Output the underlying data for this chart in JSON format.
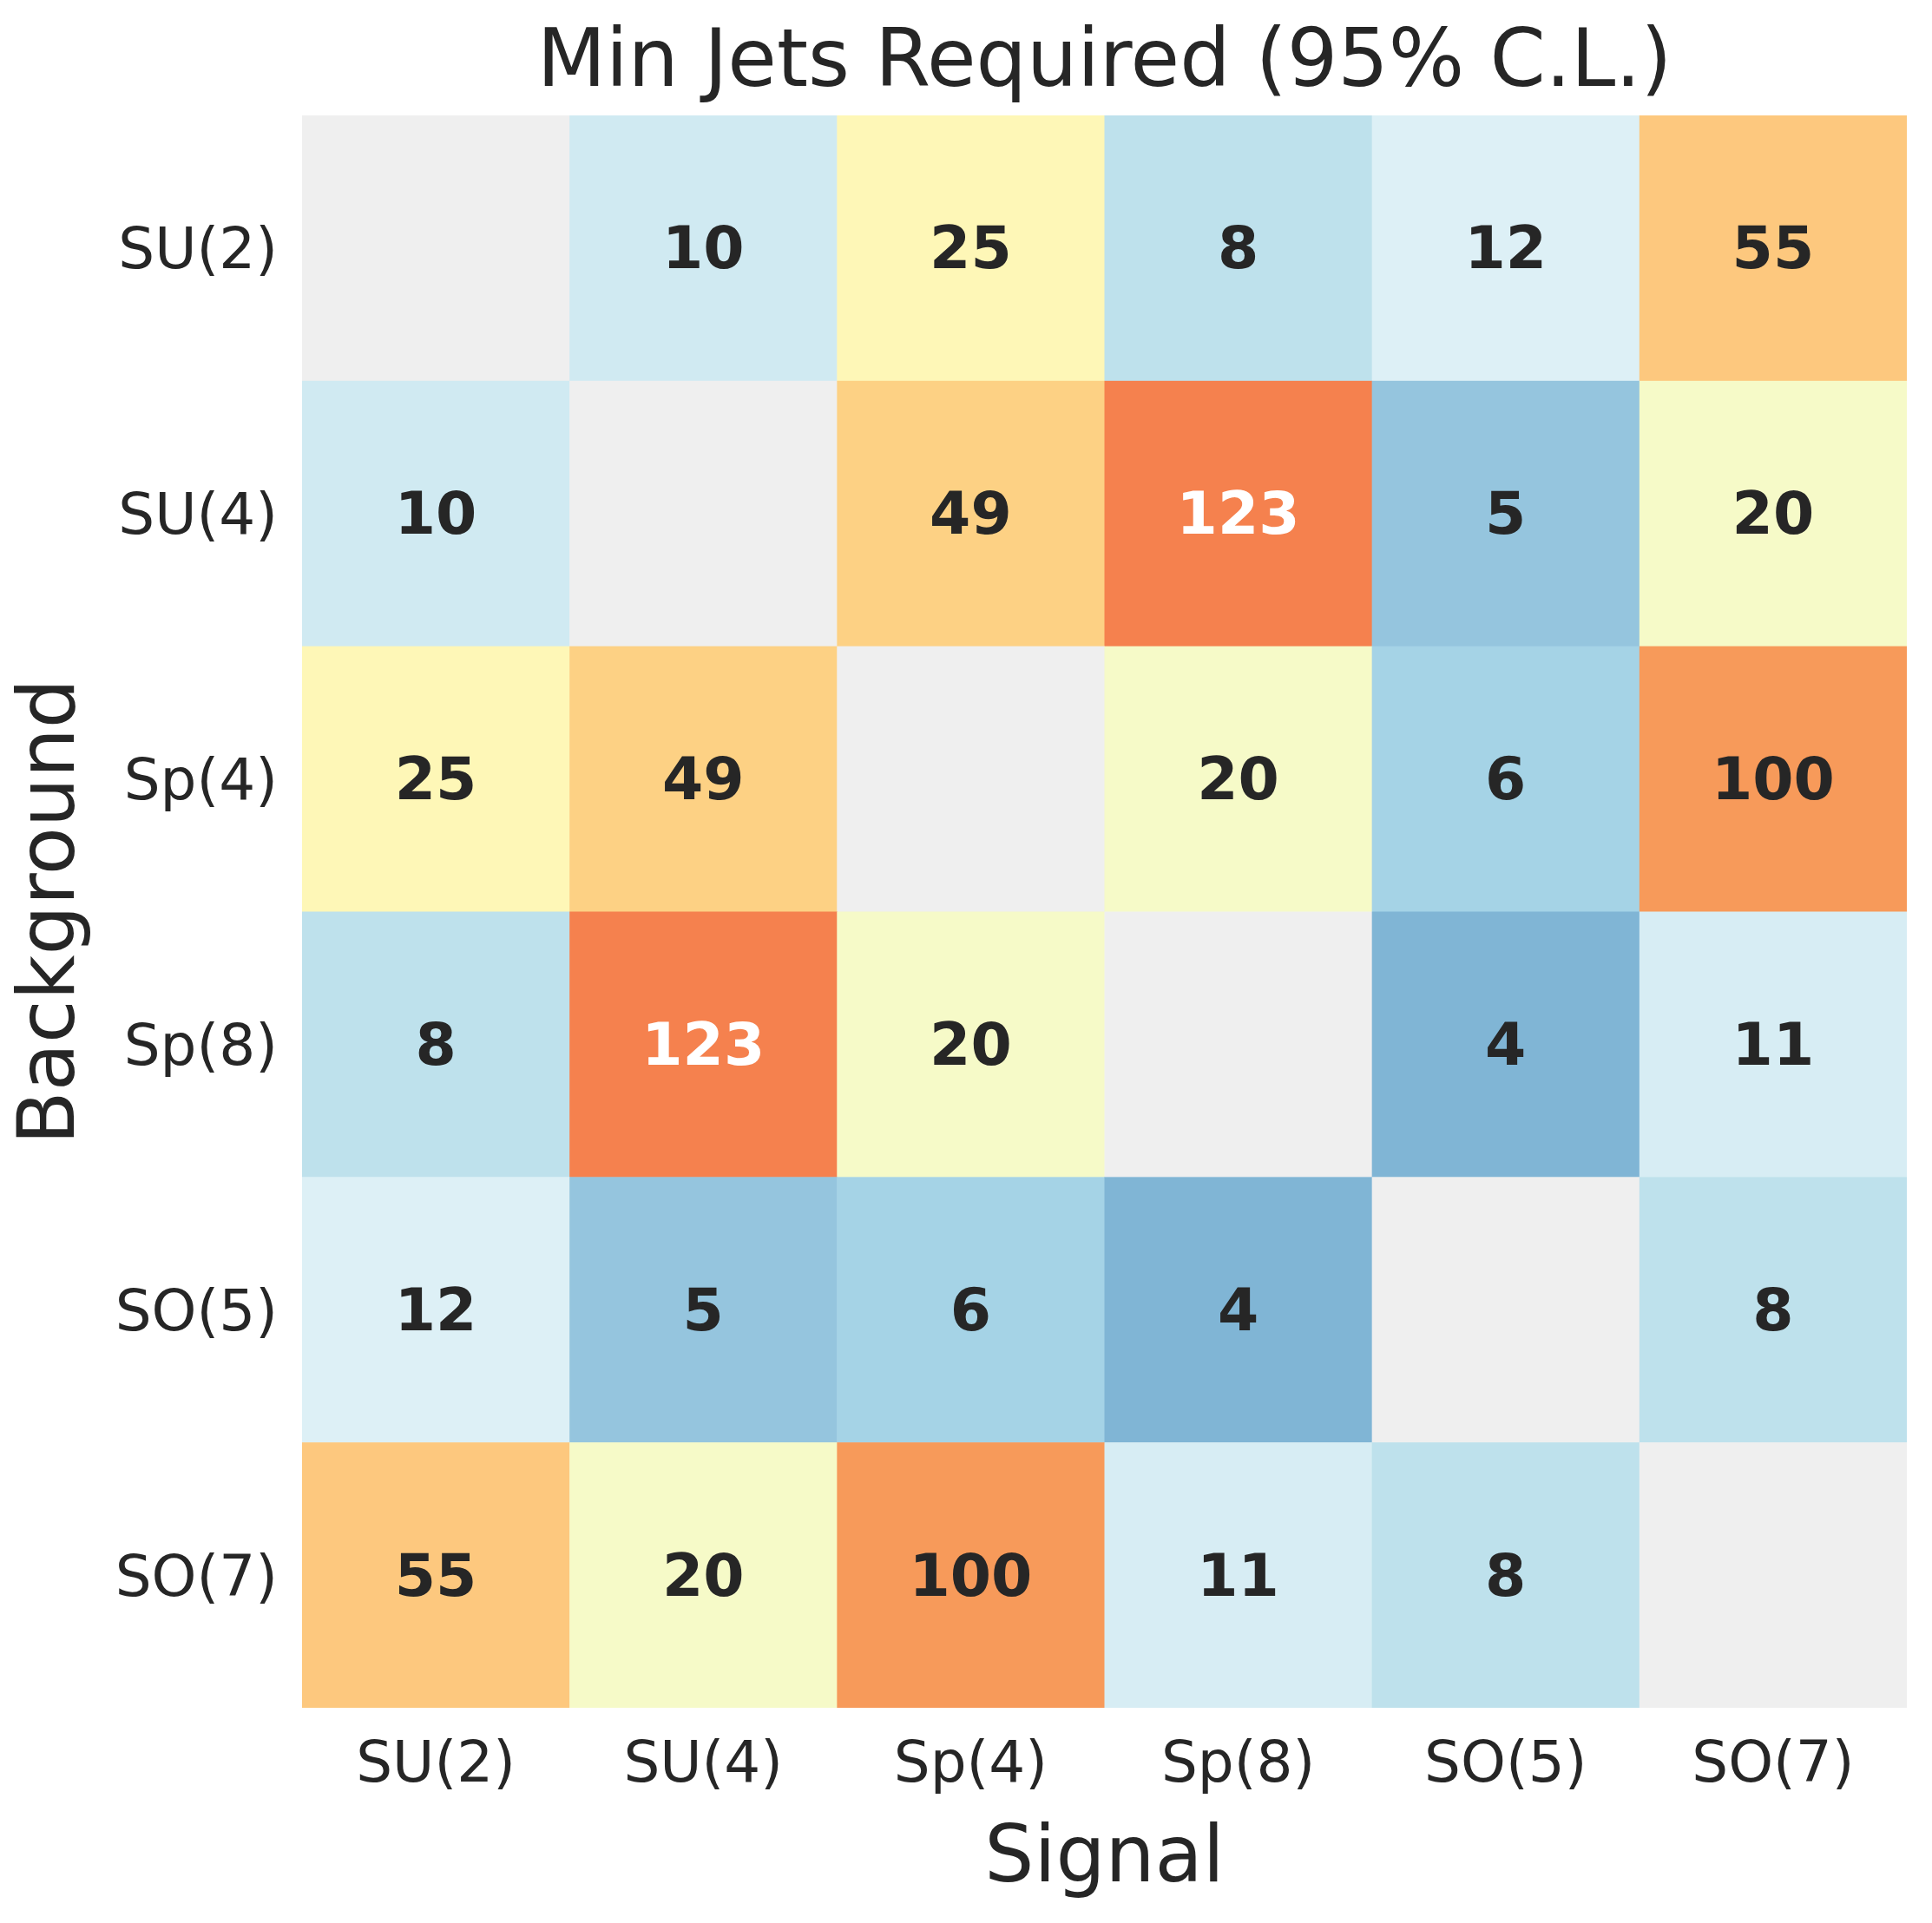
{
  "chart_data": {
    "type": "heatmap",
    "title": "Min Jets Required (95% C.L.)",
    "xlabel": "Signal",
    "ylabel": "Background",
    "data_labels": true,
    "categories": [
      "SU(2)",
      "SU(4)",
      "Sp(4)",
      "Sp(8)",
      "SO(5)",
      "SO(7)"
    ],
    "y_categories": [
      "SU(2)",
      "SU(4)",
      "Sp(4)",
      "Sp(8)",
      "SO(5)",
      "SO(7)"
    ],
    "cells": [
      [
        null,
        10,
        25,
        8,
        12,
        55
      ],
      [
        10,
        null,
        49,
        123,
        5,
        20
      ],
      [
        25,
        49,
        null,
        20,
        6,
        100
      ],
      [
        8,
        123,
        20,
        null,
        4,
        11
      ],
      [
        12,
        5,
        6,
        4,
        null,
        8
      ],
      [
        55,
        20,
        100,
        11,
        8,
        null
      ]
    ]
  }
}
